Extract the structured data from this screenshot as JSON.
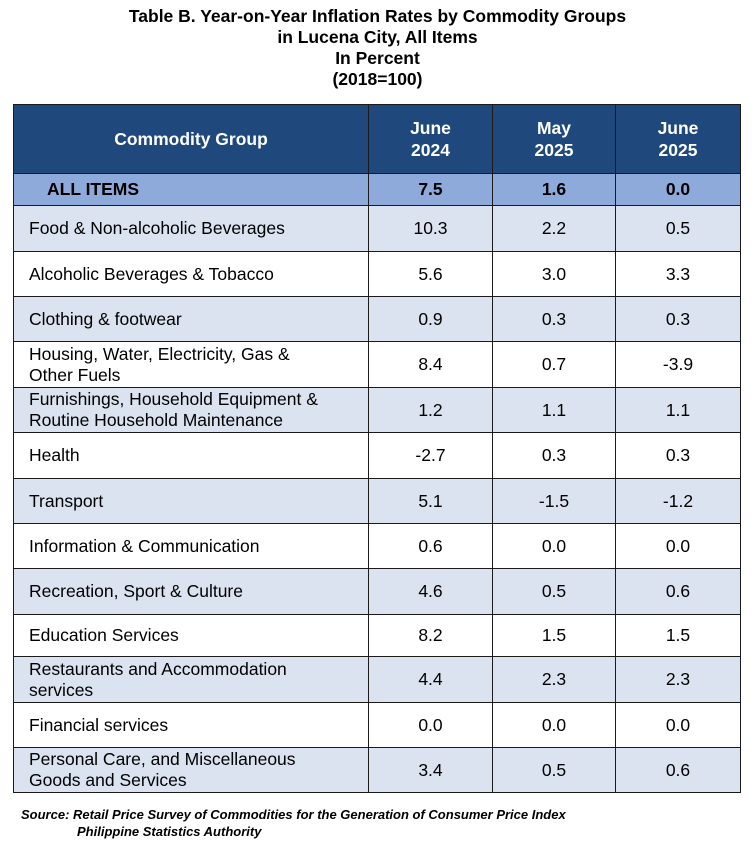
{
  "title": {
    "line1": "Table B. Year-on-Year Inflation Rates by Commodity Groups",
    "line2": "in Lucena City, All Items",
    "line3": "In Percent",
    "line4": "(2018=100)"
  },
  "table": {
    "headers": [
      {
        "line1": "Commodity Group",
        "line2": ""
      },
      {
        "line1": "June",
        "line2": "2024"
      },
      {
        "line1": "May",
        "line2": "2025"
      },
      {
        "line1": "June",
        "line2": "2025"
      }
    ],
    "all_items": {
      "label": "ALL ITEMS",
      "values": [
        "7.5",
        "1.6",
        "0.0"
      ]
    },
    "rows": [
      {
        "label1": "Food & Non-alcoholic Beverages",
        "label2": "",
        "values": [
          "10.3",
          "2.2",
          "0.5"
        ]
      },
      {
        "label1": "Alcoholic Beverages & Tobacco",
        "label2": "",
        "values": [
          "5.6",
          "3.0",
          "3.3"
        ]
      },
      {
        "label1": "Clothing & footwear",
        "label2": "",
        "values": [
          "0.9",
          "0.3",
          "0.3"
        ]
      },
      {
        "label1": "Housing, Water, Electricity, Gas &",
        "label2": "Other Fuels",
        "values": [
          "8.4",
          "0.7",
          "-3.9"
        ]
      },
      {
        "label1": "Furnishings, Household Equipment &",
        "label2": "Routine Household Maintenance",
        "values": [
          "1.2",
          "1.1",
          "1.1"
        ]
      },
      {
        "label1": "Health",
        "label2": "",
        "values": [
          "-2.7",
          "0.3",
          "0.3"
        ]
      },
      {
        "label1": "Transport",
        "label2": "",
        "values": [
          "5.1",
          "-1.5",
          "-1.2"
        ]
      },
      {
        "label1": "Information & Communication",
        "label2": "",
        "values": [
          "0.6",
          "0.0",
          "0.0"
        ]
      },
      {
        "label1": "Recreation, Sport & Culture",
        "label2": "",
        "values": [
          "4.6",
          "0.5",
          "0.6"
        ]
      },
      {
        "label1": "Education Services",
        "label2": "",
        "values": [
          "8.2",
          "1.5",
          "1.5"
        ]
      },
      {
        "label1": "Restaurants and Accommodation",
        "label2": "services",
        "values": [
          "4.4",
          "2.3",
          "2.3"
        ]
      },
      {
        "label1": "Financial services",
        "label2": "",
        "values": [
          "0.0",
          "0.0",
          "0.0"
        ]
      },
      {
        "label1": "Personal Care, and Miscellaneous",
        "label2": "Goods and Services",
        "values": [
          "3.4",
          "0.5",
          "0.6"
        ]
      }
    ]
  },
  "source": {
    "line1": "Source: Retail Price Survey of Commodities for the Generation of Consumer Price Index",
    "line2": "Philippine Statistics Authority"
  },
  "colors": {
    "header_bg": "#1f497d",
    "all_items_bg": "#8eaadb",
    "shaded_row_bg": "#dae3ef"
  }
}
